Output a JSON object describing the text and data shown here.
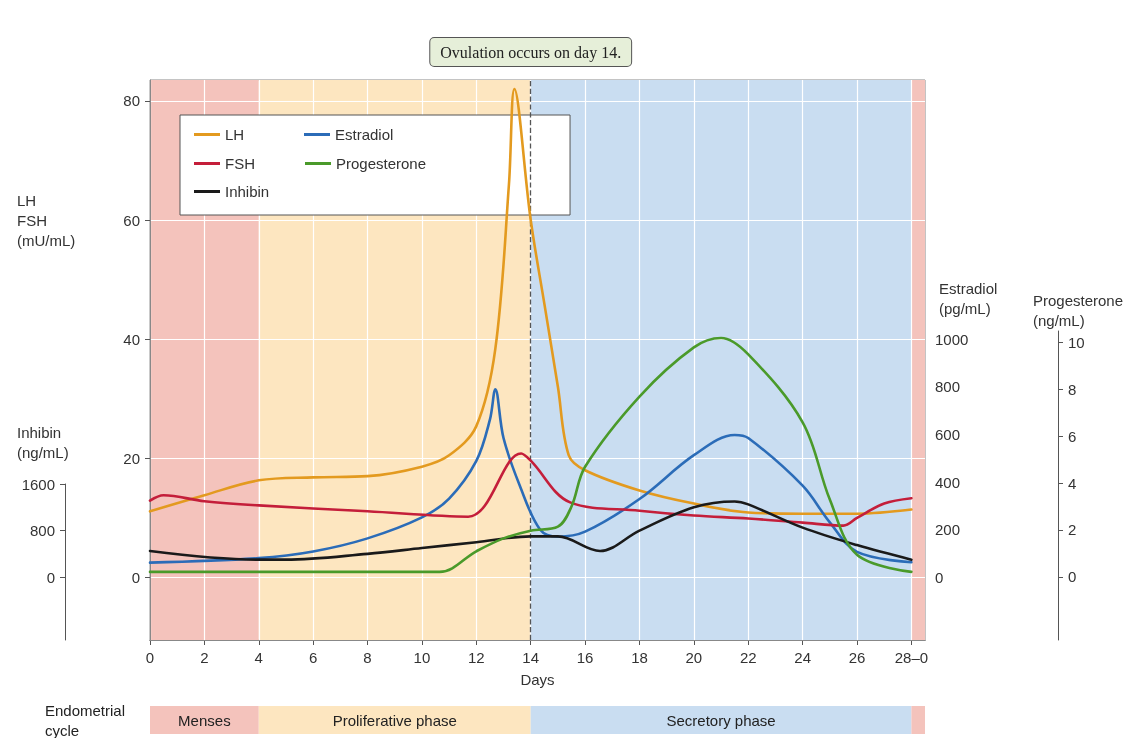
{
  "chart_data": [
    {
      "type": "line",
      "xlabel": "Days",
      "ylabel": "LH FSH (mU/mL)",
      "y2label": "Estradiol (pg/mL)",
      "xlim": [
        0,
        28.5
      ],
      "xticks": [
        0,
        2,
        4,
        6,
        8,
        10,
        12,
        14,
        16,
        18,
        20,
        22,
        24,
        26,
        {
          "value": 28,
          "label": "28–0"
        }
      ],
      "ylim": [
        -10.5,
        83.5
      ],
      "yticks": [
        0,
        20,
        40,
        60,
        80
      ],
      "y2lim": [
        -262.5,
        2087.5
      ],
      "y2ticks": [
        0,
        200,
        400,
        600,
        800,
        1000
      ],
      "grid": true,
      "legend": "top left",
      "bands": [
        {
          "axis": "x",
          "from": 0,
          "to": 4,
          "color": "#f4c3bc"
        },
        {
          "axis": "x",
          "from": 4,
          "to": 14,
          "color": "#fde6c0"
        },
        {
          "axis": "x",
          "from": 14,
          "to": 28,
          "color": "#c9ddf1"
        },
        {
          "axis": "x",
          "from": 28,
          "to": 28.5,
          "color": "#f4c3bc"
        }
      ],
      "ref_lines": [
        {
          "axis": "x",
          "value": 14,
          "label": "Ovulation occurs on day 14.",
          "line_style": "dashed",
          "color": "#555555"
        }
      ],
      "series": [
        {
          "name": "LH",
          "color": "#e39a1f",
          "x": [
            0,
            2,
            4,
            6,
            8,
            10,
            11,
            12,
            12.7,
            13.2,
            13.4,
            14,
            14.5,
            15,
            15.4,
            16,
            18,
            20,
            22,
            24,
            26,
            28
          ],
          "values": [
            11.1,
            13.8,
            16.3,
            16.8,
            17,
            18.6,
            20.5,
            25.4,
            38.4,
            66,
            82,
            60,
            46,
            32,
            20.5,
            18,
            14.6,
            12.4,
            10.9,
            10.7,
            10.7,
            11.4
          ]
        },
        {
          "name": "Estradiol",
          "color": "#2b6cb8",
          "axis": "y2",
          "x": [
            0,
            4,
            6,
            8,
            10,
            11,
            12,
            12.5,
            12.7,
            13,
            13.6,
            14.35,
            15,
            16,
            18,
            20,
            21.5,
            22,
            24,
            25,
            26,
            28
          ],
          "values": [
            62,
            81,
            109,
            164,
            252,
            331,
            489,
            662,
            790,
            585,
            385,
            200,
            171,
            192,
            329,
            513,
            598,
            585,
            385,
            231,
            107,
            64
          ]
        },
        {
          "name": "FSH",
          "color": "#c41e3a",
          "x": [
            0,
            0.5,
            2,
            4,
            8,
            11.7,
            13.65,
            14,
            15.45,
            18,
            20,
            22,
            24,
            25.5,
            26,
            27,
            28
          ],
          "values": [
            12.9,
            13.8,
            12.8,
            12.1,
            11.1,
            10.2,
            20.8,
            19.6,
            12.6,
            11.2,
            10.4,
            9.9,
            9.2,
            8.7,
            10,
            12.4,
            13.3
          ]
        }
      ]
    },
    {
      "type": "line",
      "ylabel": "Inhibin (ng/mL)",
      "xlim": [
        0,
        28.5
      ],
      "ylim": [
        -1080,
        1600
      ],
      "yticks": [
        0,
        800,
        1600
      ],
      "tick_labels": "y",
      "legend": "top left",
      "series": [
        {
          "name": "Inhibin",
          "color": "#1a1a1a",
          "x": [
            0,
            4,
            5,
            8,
            10,
            12,
            14,
            15,
            16.55,
            18,
            20,
            21.5,
            22,
            24,
            26,
            28
          ],
          "values": [
            450,
            300,
            300,
            400,
            500,
            600,
            700,
            700,
            450,
            800,
            1200,
            1300,
            1250,
            850,
            550,
            300
          ]
        }
      ]
    },
    {
      "type": "line",
      "ylabel": "Progesterone (ng/mL)",
      "xlim": [
        0,
        28.5
      ],
      "ylim": [
        -2.7,
        10.5
      ],
      "yticks": [
        0,
        2,
        4,
        6,
        8,
        10
      ],
      "tick_labels": "y",
      "legend": "top left",
      "series": [
        {
          "name": "Progesterone",
          "color": "#4a9a2a",
          "x": [
            0,
            10.65,
            12,
            13,
            14,
            15,
            15.5,
            16,
            18,
            20,
            21,
            22,
            24,
            25,
            26,
            28
          ],
          "values": [
            0.21,
            0.21,
            1.09,
            1.64,
            1.97,
            2.14,
            3,
            4.7,
            7.7,
            9.8,
            10.2,
            9.5,
            6.6,
            3.3,
            0.94,
            0.21
          ]
        }
      ]
    },
    {
      "type": "bar",
      "orientation": "horizontal",
      "stacked": true,
      "categories": [
        "Endometrial cycle"
      ],
      "xlim": [
        0,
        28.5
      ],
      "tick_labels": "y",
      "series": [
        {
          "name": "Menses",
          "color": "#f4c3bc",
          "values": [
            4
          ]
        },
        {
          "name": "Proliferative phase",
          "color": "#fde6c0",
          "values": [
            10
          ]
        },
        {
          "name": "Secretory phase",
          "color": "#c9ddf1",
          "values": [
            14
          ]
        },
        {
          "color": "#f4c3bc",
          "values": [
            0.5
          ]
        }
      ]
    }
  ]
}
